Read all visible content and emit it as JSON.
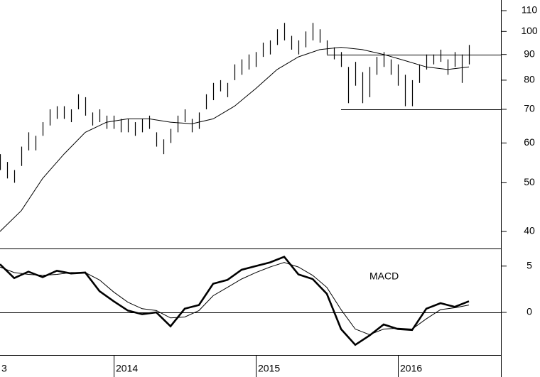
{
  "chart_data": [
    {
      "type": "ohlc",
      "log_scale": true,
      "color": "#000000",
      "xlim": [
        2013.2,
        2016.725
      ],
      "ylim": [
        37,
        115.5
      ],
      "yticks": [
        40,
        50,
        60,
        70,
        80,
        90,
        100,
        110
      ],
      "x": [
        2013.2,
        2013.25,
        2013.3,
        2013.35,
        2013.4,
        2013.45,
        2013.5,
        2013.55,
        2013.6,
        2013.65,
        2013.7,
        2013.75,
        2013.8,
        2013.85,
        2013.9,
        2013.95,
        2014.0,
        2014.05,
        2014.1,
        2014.15,
        2014.2,
        2014.25,
        2014.3,
        2014.35,
        2014.4,
        2014.45,
        2014.5,
        2014.55,
        2014.6,
        2014.65,
        2014.7,
        2014.75,
        2014.8,
        2014.85,
        2014.9,
        2014.95,
        2015.0,
        2015.05,
        2015.1,
        2015.15,
        2015.2,
        2015.25,
        2015.3,
        2015.35,
        2015.4,
        2015.45,
        2015.5,
        2015.55,
        2015.6,
        2015.65,
        2015.7,
        2015.75,
        2015.8,
        2015.85,
        2015.9,
        2015.95,
        2016.0,
        2016.05,
        2016.1,
        2016.15,
        2016.2,
        2016.25,
        2016.3,
        2016.35,
        2016.4,
        2016.45,
        2016.5
      ],
      "high": [
        57,
        55,
        53,
        59,
        63,
        62,
        66,
        70,
        71,
        71,
        70,
        75,
        74,
        69,
        70,
        68,
        68,
        67,
        67,
        66,
        67,
        68,
        63,
        61,
        64,
        68,
        70,
        67,
        69,
        75,
        79,
        80,
        79,
        86,
        88,
        90,
        91,
        95,
        96,
        101,
        104,
        98,
        96,
        100,
        104,
        101,
        96,
        93,
        91,
        85,
        87,
        83,
        85,
        89,
        91,
        88,
        86,
        82,
        80,
        86,
        90,
        90,
        92,
        88,
        91,
        90,
        94
      ],
      "low": [
        53,
        51,
        50,
        54,
        58,
        58,
        62,
        65,
        67,
        67,
        66,
        70,
        68,
        65,
        66,
        64,
        64,
        63,
        63,
        62,
        63,
        64,
        59,
        57,
        60,
        63,
        66,
        63,
        64,
        70,
        73,
        76,
        74,
        80,
        82,
        84,
        85,
        89,
        90,
        94,
        96,
        92,
        90,
        93,
        96,
        95,
        90,
        88,
        85,
        72,
        78,
        72,
        74,
        82,
        85,
        82,
        78,
        71,
        71,
        79,
        84,
        86,
        87,
        82,
        85,
        79,
        86
      ],
      "overlays": [
        {
          "color": "#000000",
          "x": [
            2013.2,
            2013.35,
            2013.5,
            2013.65,
            2013.8,
            2013.95,
            2014.1,
            2014.25,
            2014.4,
            2014.55,
            2014.7,
            2014.85,
            2015.0,
            2015.15,
            2015.3,
            2015.45,
            2015.6,
            2015.75,
            2015.9,
            2016.05,
            2016.2,
            2016.35,
            2016.5
          ],
          "values": [
            40,
            44,
            51,
            57,
            63,
            66,
            67,
            67,
            66,
            65.5,
            67,
            71,
            77,
            84,
            89,
            92,
            93,
            92,
            90,
            87.5,
            85,
            84,
            85
          ]
        }
      ],
      "levels": [
        {
          "value": 90,
          "from": 2015.5
        },
        {
          "value": 70,
          "from": 2015.6
        }
      ]
    },
    {
      "type": "line",
      "annotation": "MACD",
      "xlim": [
        2013.2,
        2016.725
      ],
      "ylim": [
        -4.6,
        6.9
      ],
      "yticks": [
        0,
        5
      ],
      "xticks": [
        {
          "value": 2013,
          "label": "3"
        },
        2014,
        2015,
        2016
      ],
      "x": [
        2013.2,
        2013.3,
        2013.4,
        2013.5,
        2013.6,
        2013.7,
        2013.8,
        2013.9,
        2014.0,
        2014.1,
        2014.2,
        2014.3,
        2014.4,
        2014.5,
        2014.6,
        2014.7,
        2014.8,
        2014.9,
        2015.0,
        2015.1,
        2015.2,
        2015.3,
        2015.4,
        2015.5,
        2015.6,
        2015.7,
        2015.8,
        2015.9,
        2016.0,
        2016.1,
        2016.2,
        2016.3,
        2016.4,
        2016.5
      ],
      "series": [
        {
          "color": "#000000",
          "width": 2.6,
          "values": [
            5.2,
            3.7,
            4.4,
            3.8,
            4.5,
            4.2,
            4.3,
            2.3,
            1.2,
            0.2,
            -0.2,
            0.0,
            -1.5,
            0.4,
            0.8,
            3.1,
            3.5,
            4.6,
            5.0,
            5.4,
            6.0,
            4.1,
            3.6,
            2.0,
            -1.8,
            -3.5,
            -2.5,
            -1.3,
            -1.8,
            -1.9,
            0.4,
            1.0,
            0.6,
            1.2
          ]
        },
        {
          "color": "#000000",
          "width": 1,
          "values": [
            4.9,
            4.3,
            4.1,
            4.0,
            4.1,
            4.3,
            4.3,
            3.5,
            2.2,
            1.1,
            0.4,
            0.2,
            -0.6,
            -0.5,
            0.2,
            1.8,
            2.7,
            3.6,
            4.3,
            4.9,
            5.4,
            4.9,
            4.0,
            2.7,
            0.3,
            -1.8,
            -2.4,
            -1.8,
            -1.7,
            -1.8,
            -0.7,
            0.3,
            0.5,
            0.8
          ]
        }
      ]
    }
  ]
}
